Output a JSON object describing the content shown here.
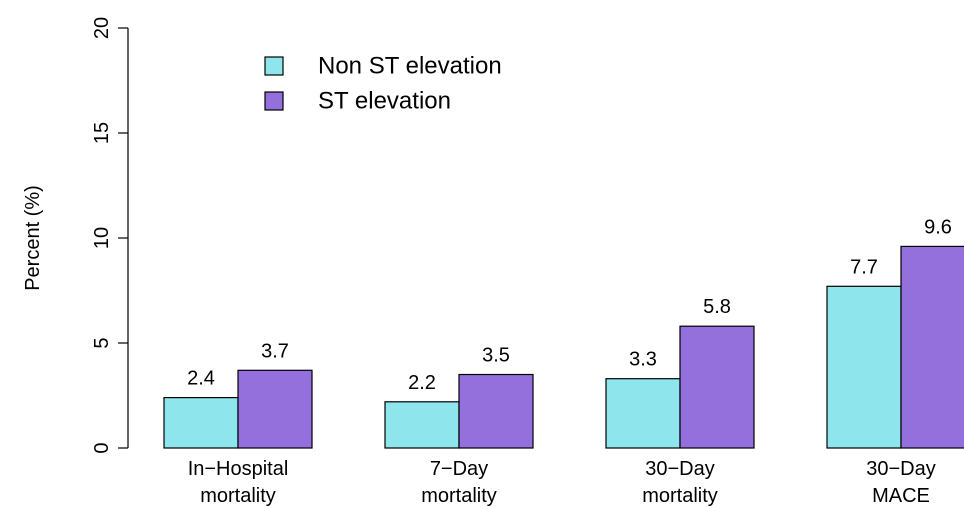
{
  "chart_data": {
    "type": "bar",
    "title": "",
    "xlabel": "",
    "ylabel": "Percent (%)",
    "ylim": [
      0,
      20
    ],
    "yticks": [
      0,
      5,
      10,
      15,
      20
    ],
    "grid": false,
    "legend_position": "top-left",
    "categories": [
      [
        "In−Hospital",
        "mortality"
      ],
      [
        "7−Day",
        "mortality"
      ],
      [
        "30−Day",
        "mortality"
      ],
      [
        "30−Day",
        "MACE"
      ]
    ],
    "series": [
      {
        "name": "Non ST elevation",
        "color": "#8FE5EC",
        "values": [
          2.4,
          2.2,
          3.3,
          7.7
        ]
      },
      {
        "name": "ST elevation",
        "color": "#9370DB",
        "values": [
          3.7,
          3.5,
          5.8,
          9.6
        ]
      }
    ]
  }
}
